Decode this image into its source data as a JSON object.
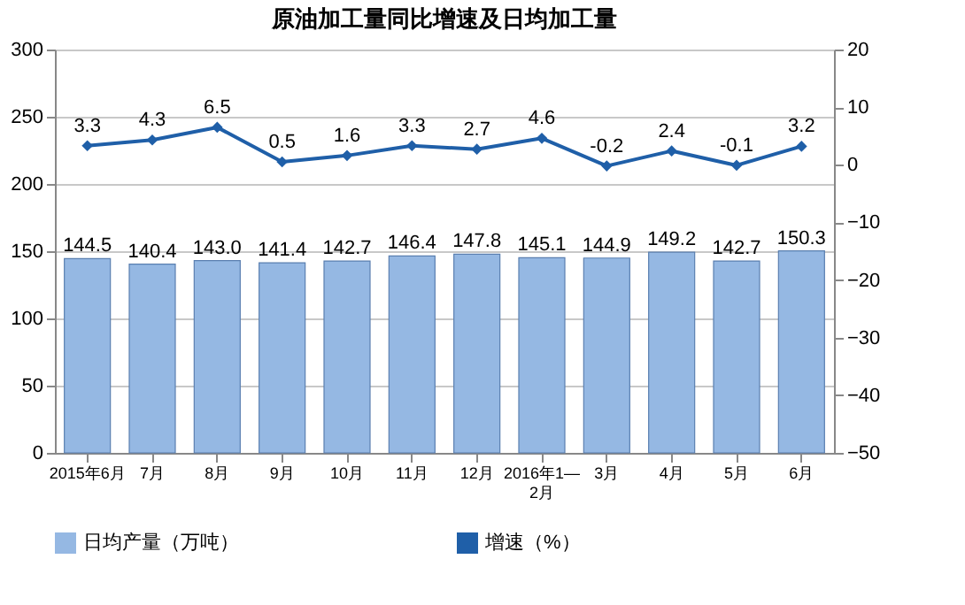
{
  "chart_data": {
    "type": "bar",
    "title": "原油加工量同比增速及日均加工量",
    "categories": [
      "2015年6月",
      "7月",
      "8月",
      "9月",
      "10月",
      "11月",
      "12月",
      "2016年1—2月",
      "3月",
      "4月",
      "5月",
      "6月"
    ],
    "series": [
      {
        "name": "日均产量（万吨）",
        "color": "#95b8e3",
        "values": [
          144.5,
          140.4,
          143.0,
          141.4,
          142.7,
          146.4,
          147.8,
          145.1,
          144.9,
          149.2,
          142.7,
          150.3
        ],
        "value_labels": [
          "144.5",
          "140.4",
          "143.0",
          "141.4",
          "142.7",
          "146.4",
          "147.8",
          "145.1",
          "144.9",
          "149.2",
          "142.7",
          "150.3"
        ]
      },
      {
        "name": "增速（%）",
        "type": "line",
        "axis": "y2",
        "color": "#1f5fa8",
        "marker": "diamond",
        "line_style": "solid",
        "values": [
          3.3,
          4.3,
          6.5,
          0.5,
          1.6,
          3.3,
          2.7,
          4.6,
          -0.2,
          2.4,
          -0.1,
          3.2
        ],
        "value_labels": [
          "3.3",
          "4.3",
          "6.5",
          "0.5",
          "1.6",
          "3.3",
          "2.7",
          "4.6",
          "-0.2",
          "2.4",
          "-0.1",
          "3.2"
        ]
      }
    ],
    "ylim": [
      0,
      300
    ],
    "yticks": [
      0,
      50,
      100,
      150,
      200,
      250,
      300
    ],
    "y2lim": [
      -50,
      20
    ],
    "y2ticks": [
      -50,
      -40,
      -30,
      -20,
      -10,
      0,
      10,
      20
    ],
    "grid": "y",
    "legend": "bottom"
  }
}
